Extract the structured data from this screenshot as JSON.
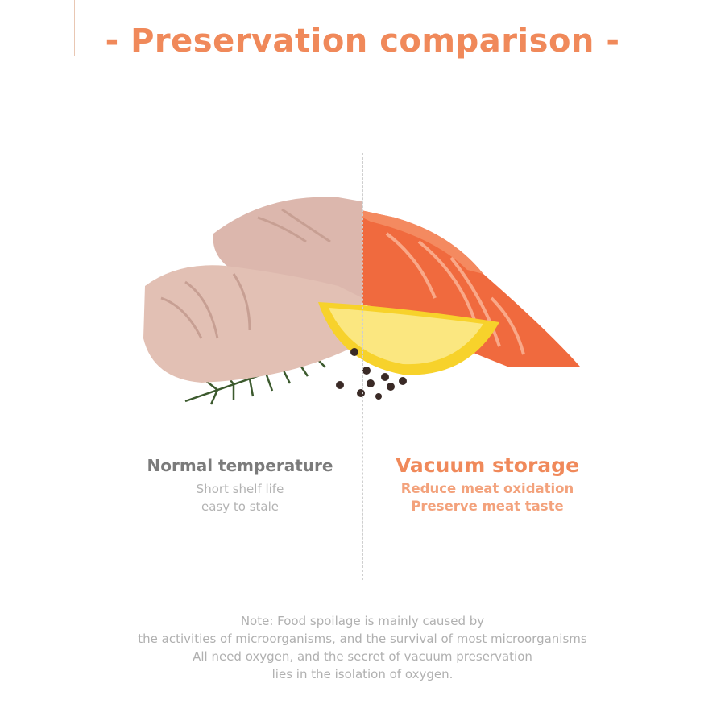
{
  "title": "- Preservation comparison -",
  "colors": {
    "accent": "#f0895a",
    "muted": "#7b7b7b",
    "light": "#b3b3b3"
  },
  "left": {
    "heading": "Normal temperature",
    "lines": [
      "Short shelf life",
      "easy to stale"
    ]
  },
  "right": {
    "heading": "Vacuum storage",
    "lines": [
      "Reduce meat oxidation",
      "Preserve meat taste"
    ]
  },
  "note": {
    "lines": [
      "Note: Food spoilage is mainly caused by",
      "the activities of microorganisms, and the survival of most microorganisms",
      "All need oxygen, and the secret of vacuum preservation",
      "lies in the isolation of oxygen."
    ]
  }
}
